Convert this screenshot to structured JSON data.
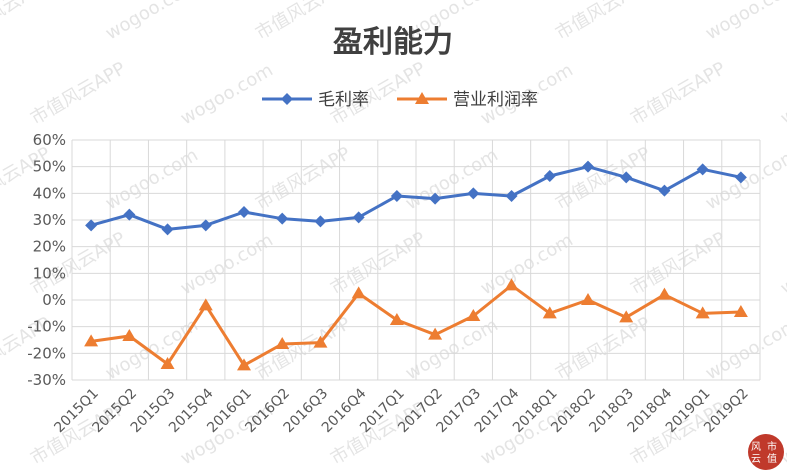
{
  "chart_data": {
    "type": "line",
    "title": "盈利能力",
    "xlabel": "",
    "ylabel": "",
    "ylim": [
      -30,
      60
    ],
    "yticks": [
      60,
      50,
      40,
      30,
      20,
      10,
      0,
      -10,
      -20,
      -30
    ],
    "ytick_labels": [
      "60%",
      "50%",
      "40%",
      "30%",
      "20%",
      "10%",
      "0%",
      "-10%",
      "-20%",
      "-30%"
    ],
    "grid": true,
    "legend_position": "top",
    "categories": [
      "2015Q1",
      "2015Q2",
      "2015Q3",
      "2015Q4",
      "2016Q1",
      "2016Q2",
      "2016Q3",
      "2016Q4",
      "2017Q1",
      "2017Q2",
      "2017Q3",
      "2017Q4",
      "2018Q1",
      "2018Q2",
      "2018Q3",
      "2018Q4",
      "2019Q1",
      "2019Q2"
    ],
    "series": [
      {
        "name": "毛利率",
        "color": "#4472c4",
        "marker": "diamond",
        "values": [
          28,
          32,
          26.5,
          28,
          33,
          30.5,
          29.5,
          31,
          39,
          38,
          40,
          39,
          46.5,
          50,
          46,
          41,
          49,
          46
        ]
      },
      {
        "name": "营业利润率",
        "color": "#ed7d31",
        "marker": "triangle",
        "values": [
          -15.5,
          -13.5,
          -24,
          -2,
          -24.5,
          -16.5,
          -16,
          2.5,
          -7.5,
          -13,
          -6,
          5.5,
          -5,
          0,
          -6.5,
          2,
          -5,
          -4.5
        ]
      }
    ]
  },
  "watermark": {
    "text_a": "市值风云APP",
    "text_b": "wogoo.com"
  },
  "logo": {
    "line1": "风",
    "line2": "云",
    "line3": "市",
    "line4": "值"
  }
}
